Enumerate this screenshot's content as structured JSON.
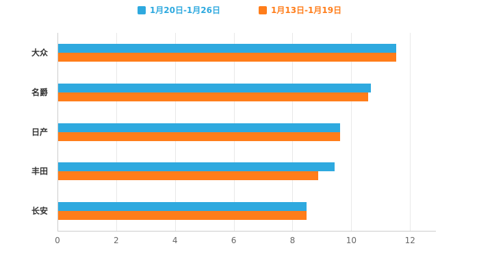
{
  "legend": {
    "items": [
      {
        "label": "1月20日-1月26日",
        "color": "#2ea9df"
      },
      {
        "label": "1月13日-1月19日",
        "color": "#ff7d1a"
      }
    ]
  },
  "chart_data": {
    "type": "bar",
    "orientation": "horizontal",
    "title": "",
    "xlabel": "",
    "ylabel": "",
    "categories": [
      "大众",
      "名爵",
      "日产",
      "丰田",
      "长安"
    ],
    "series": [
      {
        "name": "1月20日-1月26日",
        "color": "#2ea9df",
        "values": [
          11.5,
          10.65,
          9.6,
          9.4,
          8.45
        ]
      },
      {
        "name": "1月13日-1月19日",
        "color": "#ff7d1a",
        "values": [
          11.5,
          10.55,
          9.6,
          8.85,
          8.45
        ]
      }
    ],
    "xticks": [
      0,
      2,
      4,
      6,
      8,
      10,
      12
    ],
    "xlim": [
      0,
      12.88
    ],
    "grid": true,
    "legend_position": "top"
  }
}
